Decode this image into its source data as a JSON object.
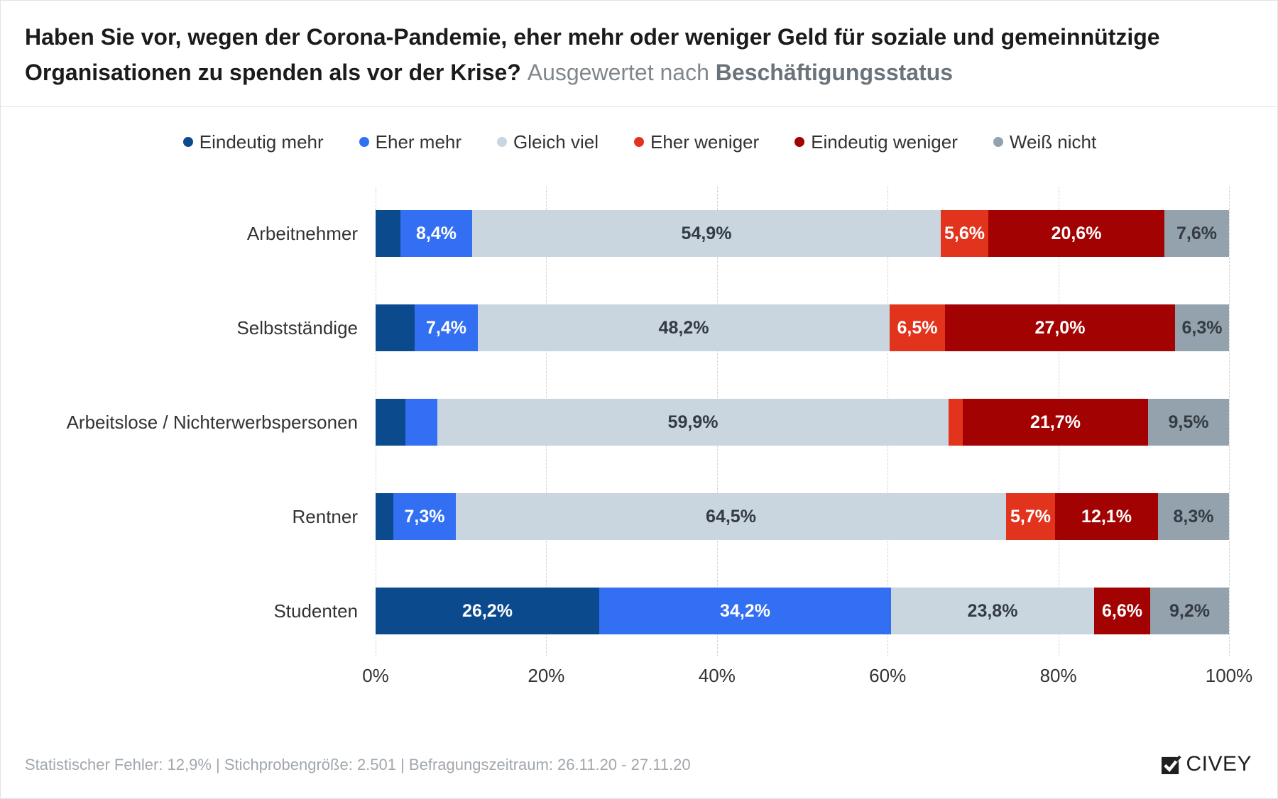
{
  "chart_data": {
    "type": "bar",
    "orientation": "horizontal",
    "stacked": "percent",
    "title": "Haben Sie vor, wegen der Corona-Pandemie, eher mehr oder weniger Geld für soziale und gemeinnützige Organisationen zu spenden als vor der Krise?",
    "subtitle_prefix": "Ausgewertet nach",
    "subtitle_emphasis": "Beschäftigungsstatus",
    "categories": [
      "Arbeitnehmer",
      "Selbstständige",
      "Arbeitslose / Nichterwerbspersonen",
      "Rentner",
      "Studenten"
    ],
    "series": [
      {
        "name": "Eindeutig mehr",
        "color": "#0c4a8e",
        "label_color": "#ffffff",
        "values": [
          2.9,
          4.6,
          3.5,
          2.1,
          26.2
        ]
      },
      {
        "name": "Eher mehr",
        "color": "#336ff3",
        "label_color": "#ffffff",
        "values": [
          8.4,
          7.4,
          3.7,
          7.3,
          34.2
        ]
      },
      {
        "name": "Gleich viel",
        "color": "#c9d5df",
        "label_color": "#343b42",
        "values": [
          54.9,
          48.2,
          59.9,
          64.5,
          23.8
        ]
      },
      {
        "name": "Eher weniger",
        "color": "#e2341d",
        "label_color": "#ffffff",
        "values": [
          5.6,
          6.5,
          1.7,
          5.7,
          0
        ]
      },
      {
        "name": "Eindeutig weniger",
        "color": "#a30202",
        "label_color": "#ffffff",
        "values": [
          20.6,
          27.0,
          21.7,
          12.1,
          6.6
        ]
      },
      {
        "name": "Weiß nicht",
        "color": "#93a2ad",
        "label_color": "#343b42",
        "values": [
          7.6,
          6.3,
          9.5,
          8.3,
          9.2
        ]
      }
    ],
    "unit": "%",
    "xlim": [
      0,
      100
    ],
    "x_ticks": [
      0,
      20,
      40,
      60,
      80,
      100
    ],
    "x_tick_labels": [
      "0%",
      "20%",
      "40%",
      "60%",
      "80%",
      "100%"
    ],
    "grid": true,
    "legend_position": "top-center"
  },
  "footer": {
    "text": "Statistischer Fehler: 12,9% | Stichprobengröße: 2.501 | Befragungszeitraum: 26.11.20 - 27.11.20"
  },
  "brand": {
    "name": "CIVEY",
    "logo_icon": "civey-check-icon"
  }
}
